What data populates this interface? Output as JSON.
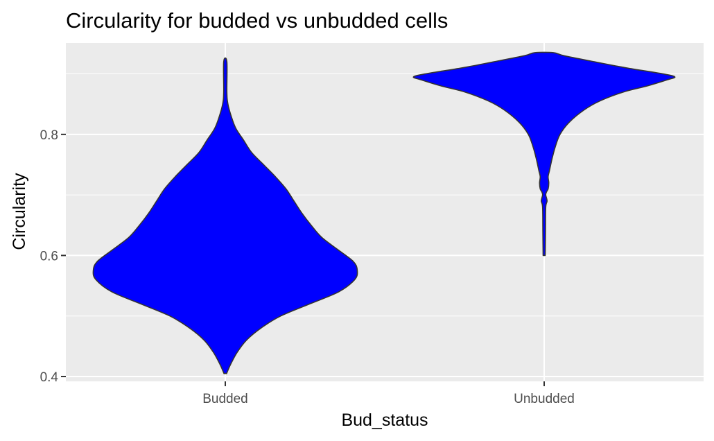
{
  "chart_data": {
    "type": "violin",
    "title": "Circularity for budded vs unbudded cells",
    "xlabel": "Bud_status",
    "ylabel": "Circularity",
    "categories": [
      "Budded",
      "Unbudded"
    ],
    "ylim": [
      0.392,
      0.951
    ],
    "y_ticks": [
      0.4,
      0.6,
      0.8
    ],
    "y_tick_labels": [
      "0.4",
      "0.6",
      "0.8"
    ],
    "grid": true,
    "fill_color": "#0000ff",
    "outline_color": "#333333",
    "panel_color": "#ebebeb",
    "violins": [
      {
        "category": "Budded",
        "min": 0.405,
        "max": 0.92,
        "profile": [
          [
            0.405,
            0.01
          ],
          [
            0.42,
            0.04
          ],
          [
            0.44,
            0.09
          ],
          [
            0.46,
            0.16
          ],
          [
            0.48,
            0.27
          ],
          [
            0.5,
            0.42
          ],
          [
            0.52,
            0.64
          ],
          [
            0.54,
            0.86
          ],
          [
            0.56,
            0.98
          ],
          [
            0.575,
            1.0
          ],
          [
            0.59,
            0.97
          ],
          [
            0.61,
            0.85
          ],
          [
            0.63,
            0.73
          ],
          [
            0.65,
            0.65
          ],
          [
            0.67,
            0.58
          ],
          [
            0.69,
            0.52
          ],
          [
            0.71,
            0.46
          ],
          [
            0.73,
            0.38
          ],
          [
            0.75,
            0.29
          ],
          [
            0.77,
            0.2
          ],
          [
            0.79,
            0.14
          ],
          [
            0.81,
            0.08
          ],
          [
            0.83,
            0.045
          ],
          [
            0.85,
            0.02
          ],
          [
            0.87,
            0.012
          ],
          [
            0.92,
            0.012
          ]
        ]
      },
      {
        "category": "Unbudded",
        "min": 0.6,
        "max": 0.935,
        "profile": [
          [
            0.6,
            0.008
          ],
          [
            0.64,
            0.01
          ],
          [
            0.68,
            0.012
          ],
          [
            0.69,
            0.022
          ],
          [
            0.7,
            0.012
          ],
          [
            0.705,
            0.018
          ],
          [
            0.71,
            0.03
          ],
          [
            0.72,
            0.035
          ],
          [
            0.73,
            0.03
          ],
          [
            0.74,
            0.04
          ],
          [
            0.76,
            0.06
          ],
          [
            0.78,
            0.085
          ],
          [
            0.8,
            0.12
          ],
          [
            0.82,
            0.19
          ],
          [
            0.84,
            0.3
          ],
          [
            0.855,
            0.42
          ],
          [
            0.87,
            0.6
          ],
          [
            0.88,
            0.78
          ],
          [
            0.89,
            0.93
          ],
          [
            0.895,
            0.99
          ],
          [
            0.9,
            0.9
          ],
          [
            0.91,
            0.62
          ],
          [
            0.92,
            0.38
          ],
          [
            0.93,
            0.15
          ],
          [
            0.935,
            0.07
          ]
        ]
      }
    ]
  }
}
